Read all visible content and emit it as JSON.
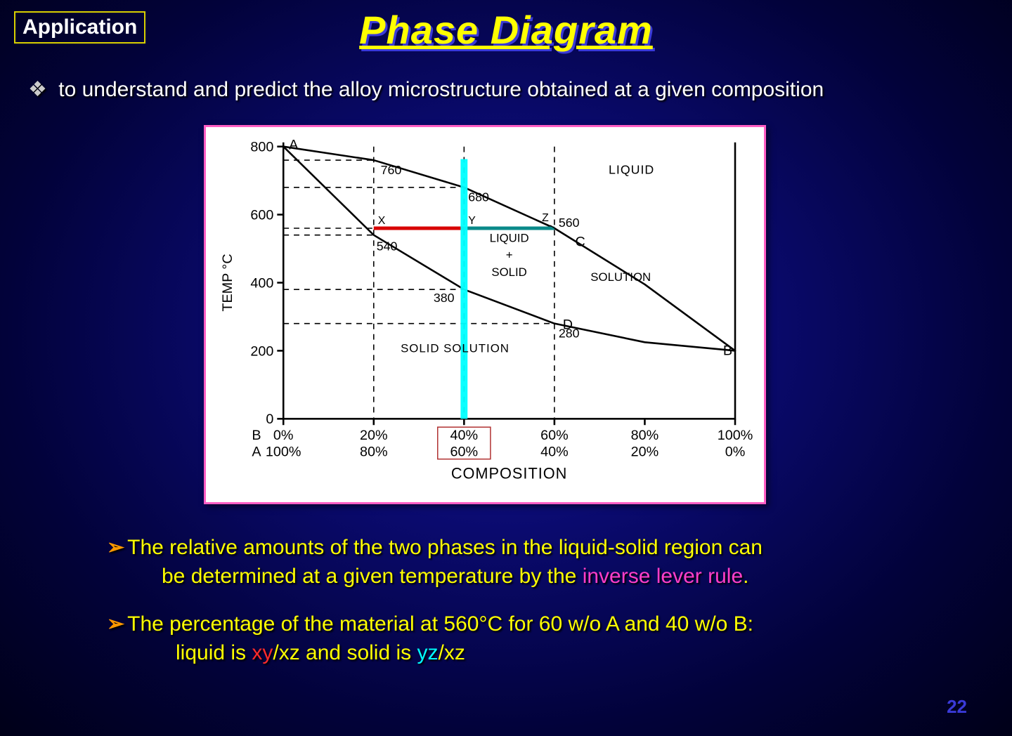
{
  "badge": "Application",
  "title": "Phase Diagram",
  "intro_bullet": "❖",
  "intro_text": "to understand and predict the alloy microstructure obtained at a given composition",
  "page_number": "22",
  "chart": {
    "type": "phase-diagram",
    "background": "#ffffff",
    "axis_color": "#000000",
    "axis_weight": 2.6,
    "dash_color": "#000000",
    "dash_pattern": "8,7",
    "tick_font": 20,
    "label_font": 20,
    "ylabel": "TEMP °C",
    "xlabel": "COMPOSITION",
    "ylim": [
      0,
      800
    ],
    "yticks": [
      0,
      200,
      400,
      600,
      800
    ],
    "x_percent_B": [
      0,
      20,
      40,
      60,
      80,
      100
    ],
    "x_labels_B": [
      "0%",
      "20%",
      "40%",
      "60%",
      "80%",
      "100%"
    ],
    "x_labels_A": [
      "100%",
      "80%",
      "60%",
      "40%",
      "20%",
      "0%"
    ],
    "row_label_B": "B",
    "row_label_A": "A",
    "liquidus": [
      [
        0,
        800
      ],
      [
        20,
        760
      ],
      [
        40,
        680
      ],
      [
        60,
        560
      ],
      [
        80,
        395
      ],
      [
        100,
        200
      ]
    ],
    "solidus": [
      [
        0,
        800
      ],
      [
        20,
        540
      ],
      [
        40,
        380
      ],
      [
        60,
        280
      ],
      [
        80,
        225
      ],
      [
        100,
        200
      ]
    ],
    "point_labels": {
      "A": "A",
      "B": "B",
      "C": "C",
      "D": "D",
      "X": "X",
      "Y": "Y",
      "Z": "Z",
      "v760": "760",
      "v680": "680",
      "v560": "560",
      "v540": "540",
      "v380": "380",
      "v280": "280"
    },
    "region_labels": {
      "liquid": "LIQUID",
      "liquid_plus_solid_l1": "LIQUID",
      "liquid_plus_solid_l2": "+",
      "liquid_plus_solid_l3": "SOLID",
      "solid_solution_lower": "SOLID   SOLUTION",
      "solution_right": "SOLUTION"
    },
    "tieline": {
      "temp": 560,
      "x_from": 20,
      "x_to": 60,
      "color_left": "#d80000",
      "color_right": "#0a8a8a",
      "width": 5
    },
    "vline": {
      "x": 40,
      "color": "#00ffff",
      "width": 10
    },
    "boxed_x": {
      "x": 40,
      "stroke": "#b03030",
      "width": 1.5
    },
    "dashes": [
      {
        "y": 760,
        "x_to": 20
      },
      {
        "y": 680,
        "x_to": 40
      },
      {
        "y": 560,
        "x_to": 60
      },
      {
        "y": 540,
        "x_to": 20
      },
      {
        "y": 380,
        "x_to": 40
      },
      {
        "y": 280,
        "x_to": 60
      }
    ],
    "vdashes": [
      20,
      40,
      60
    ]
  },
  "notes": {
    "chevron": "➢",
    "n1a": "The relative amounts of the two phases in the liquid-solid region can",
    "n1b": "be determined at a given  temperature by the ",
    "n1c": "inverse lever rule",
    "n1d": ".",
    "n2a": "The percentage of the material at 560°C for 60 w/o A and 40 w/o B:",
    "n2b_pre": "liquid is ",
    "n2b_xy": "xy",
    "n2b_mid": "/xz and solid is ",
    "n2b_yz": "yz",
    "n2b_post": "/xz"
  }
}
